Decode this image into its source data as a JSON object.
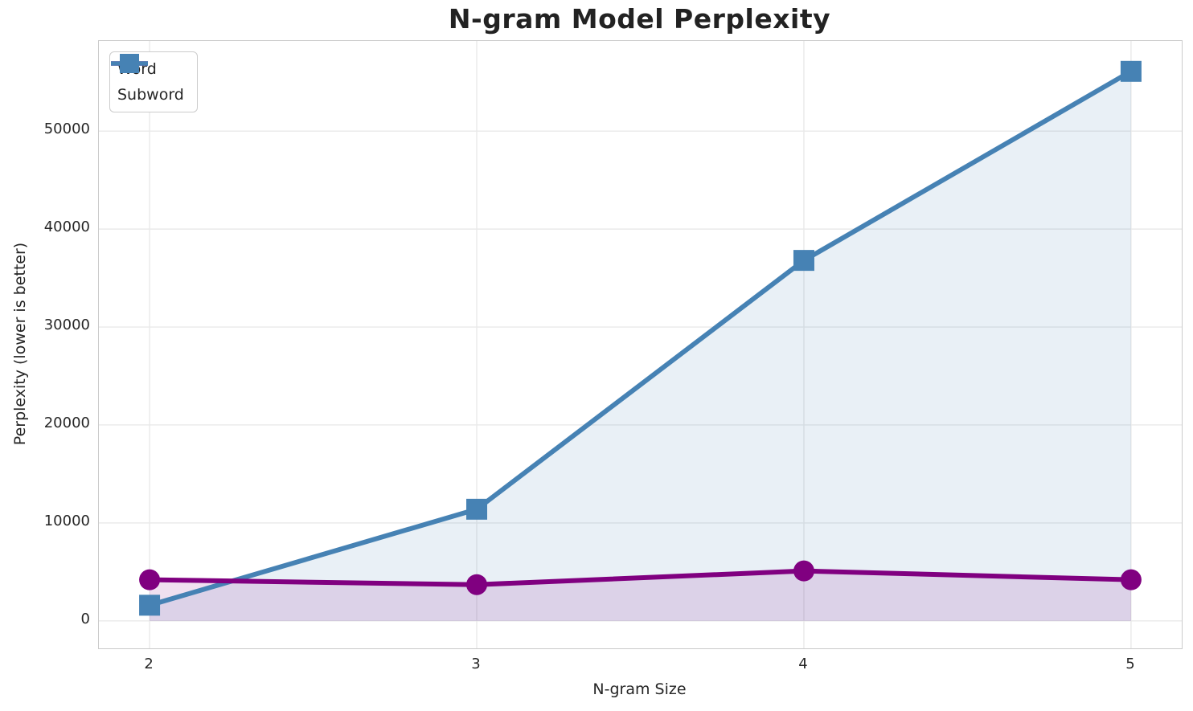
{
  "chart_data": {
    "type": "line",
    "title": "N-gram Model Perplexity",
    "xlabel": "N-gram Size",
    "ylabel": "Perplexity (lower is better)",
    "x": [
      2,
      3,
      4,
      5
    ],
    "series": [
      {
        "name": "Word",
        "color": "#800080",
        "marker": "circle",
        "values": [
          4200,
          3700,
          5100,
          4200
        ]
      },
      {
        "name": "Subword",
        "color": "#4682b4",
        "marker": "square",
        "values": [
          1600,
          11400,
          36800,
          56100
        ]
      }
    ],
    "xtick_labels": [
      "2",
      "3",
      "4",
      "5"
    ],
    "xtick_positions": [
      2,
      3,
      4,
      5
    ],
    "ytick_labels": [
      "0",
      "10000",
      "20000",
      "30000",
      "40000",
      "50000"
    ],
    "ytick_values": [
      0,
      10000,
      20000,
      30000,
      40000,
      50000
    ],
    "xlim": [
      1.845,
      5.155
    ],
    "ylim": [
      -2800,
      59200
    ],
    "grid": true,
    "legend_position": "upper left",
    "fill_to_zero": true,
    "fill_alpha": 0.12,
    "line_width": 6,
    "marker_size": 26,
    "colors": {
      "background": "#ffffff",
      "grid": "#e9e9e9",
      "spine": "#cbcbcb",
      "text": "#262626",
      "title": "#222222"
    }
  }
}
